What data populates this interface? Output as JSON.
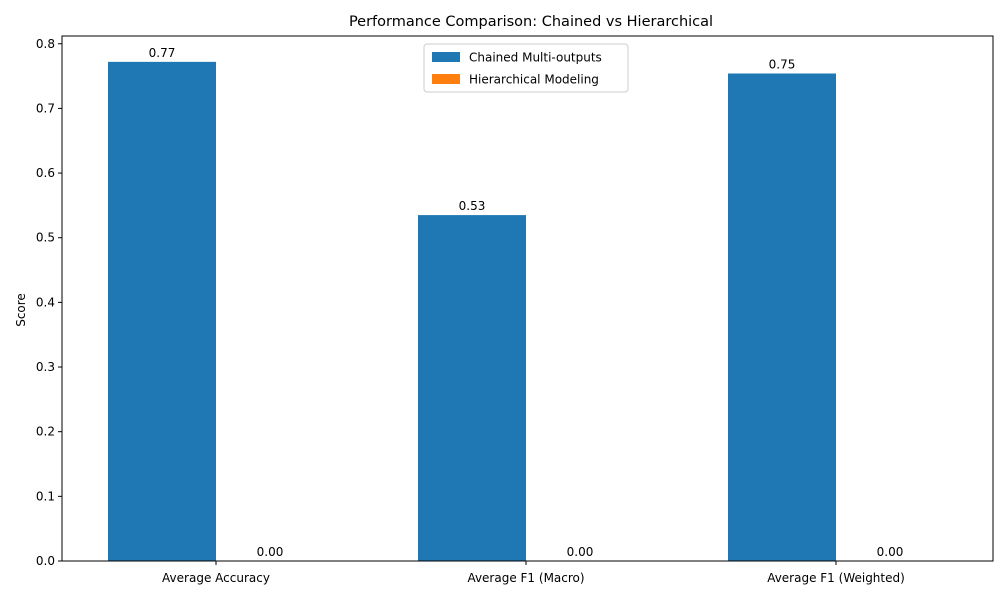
{
  "chart_data": {
    "type": "bar",
    "title": "Performance Comparison: Chained vs Hierarchical",
    "xlabel": "",
    "ylabel": "Score",
    "categories": [
      "Average Accuracy",
      "Average F1 (Macro)",
      "Average F1 (Weighted)"
    ],
    "series": [
      {
        "name": "Chained Multi-outputs",
        "color": "#1f77b4",
        "values": [
          0.772,
          0.535,
          0.754
        ],
        "labels": [
          "0.77",
          "0.53",
          "0.75"
        ]
      },
      {
        "name": "Hierarchical Modeling",
        "color": "#ff7f0e",
        "values": [
          0.0,
          0.0,
          0.0
        ],
        "labels": [
          "0.00",
          "0.00",
          "0.00"
        ]
      }
    ],
    "ylim": [
      0,
      0.812
    ],
    "yticks": [
      "0.0",
      "0.1",
      "0.2",
      "0.3",
      "0.4",
      "0.5",
      "0.6",
      "0.7",
      "0.8"
    ],
    "grid": false,
    "legend_position": "top-center"
  }
}
